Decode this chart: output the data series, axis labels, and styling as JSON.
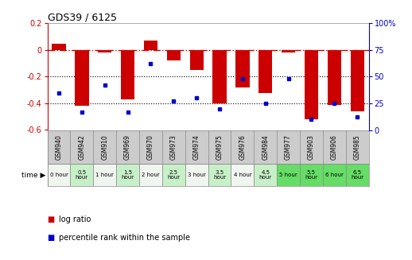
{
  "title": "GDS39 / 6125",
  "samples": [
    "GSM940",
    "GSM942",
    "GSM910",
    "GSM969",
    "GSM970",
    "GSM973",
    "GSM974",
    "GSM975",
    "GSM976",
    "GSM984",
    "GSM977",
    "GSM903",
    "GSM906",
    "GSM985"
  ],
  "time_labels": [
    "0 hour",
    "0.5\nhour",
    "1 hour",
    "1.5\nhour",
    "2 hour",
    "2.5\nhour",
    "3 hour",
    "3.5\nhour",
    "4 hour",
    "4.5\nhour",
    "5 hour",
    "5.5\nhour",
    "6 hour",
    "6.5\nhour"
  ],
  "log_ratio": [
    0.05,
    -0.42,
    -0.02,
    -0.37,
    0.07,
    -0.08,
    -0.15,
    -0.4,
    -0.28,
    -0.32,
    -0.02,
    -0.52,
    -0.41,
    -0.46
  ],
  "percentile": [
    35,
    17,
    42,
    17,
    62,
    27,
    30,
    20,
    48,
    25,
    48,
    10,
    25,
    12
  ],
  "ylim_left": [
    -0.6,
    0.2
  ],
  "ylim_right": [
    0,
    100
  ],
  "bar_color": "#cc0000",
  "dot_color": "#0000cc",
  "bg_color": "#ffffff",
  "zero_line_color": "#cc0000",
  "time_bg_colors": [
    "#f0f5f0",
    "#c8f0c8",
    "#f0f5f0",
    "#c8f0c8",
    "#f0f5f0",
    "#c8f0c8",
    "#f0f5f0",
    "#c8f0c8",
    "#f0f5f0",
    "#c8f0c8",
    "#66dd66",
    "#66dd66",
    "#66dd66",
    "#66dd66"
  ],
  "sample_bg": "#cccccc"
}
